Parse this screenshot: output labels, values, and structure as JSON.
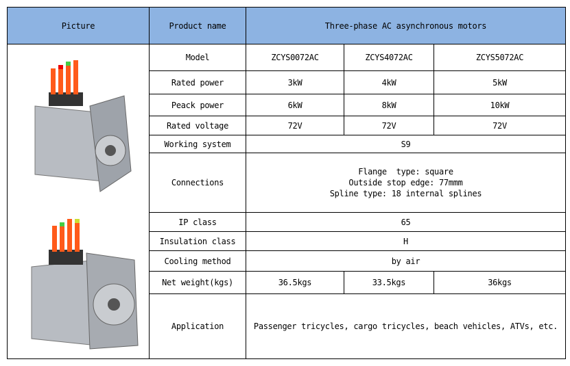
{
  "header": {
    "picture": "Picture",
    "product_name": "Product name",
    "product_title": "Three-phase AC asynchronous motors"
  },
  "colors": {
    "header_bg": "#8db3e2"
  },
  "rows": {
    "model": {
      "label": "Model",
      "values": [
        "ZCYS0072AC",
        "ZCYS4072AC",
        "ZCYS5072AC"
      ]
    },
    "rated_power": {
      "label": "Rated power",
      "values": [
        "3kW",
        "4kW",
        "5kW"
      ]
    },
    "peak_power": {
      "label": "Peack power",
      "values": [
        "6kW",
        "8kW",
        "10kW"
      ]
    },
    "rated_voltage": {
      "label": "Rated voltage",
      "values": [
        "72V",
        "72V",
        "72V"
      ]
    },
    "working_system": {
      "label": "Working system",
      "value": "S9"
    },
    "connections": {
      "label": "Connections",
      "lines": [
        "Flange  type: square",
        "Outside stop edge: 77mmm",
        "Spline type: 18 internal splines"
      ]
    },
    "ip_class": {
      "label": "IP class",
      "value": "65"
    },
    "insulation_class": {
      "label": "Insulation class",
      "value": "H"
    },
    "cooling_method": {
      "label": "Cooling method",
      "value": "by air"
    },
    "net_weight": {
      "label": "Net weight(kgs)",
      "values": [
        "36.5kgs",
        "33.5kgs",
        "36kgs"
      ]
    },
    "application": {
      "label": "Application",
      "value": "Passenger tricycles, cargo tricycles, beach vehicles, ATVs, etc."
    }
  }
}
